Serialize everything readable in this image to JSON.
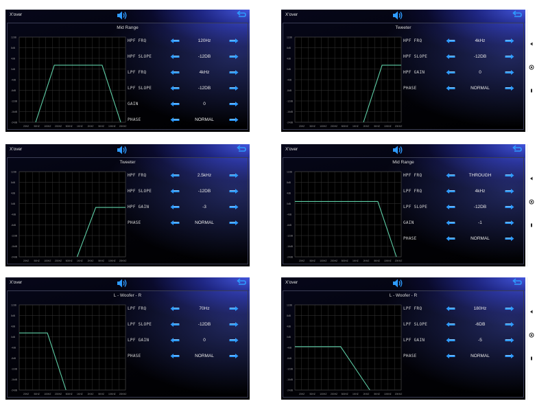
{
  "graph": {
    "y_ticks": [
      "12dB",
      "8dB",
      "4dB",
      "0dB",
      "-4dB",
      "-8dB",
      "-12dB",
      "-16dB",
      "-24dB"
    ],
    "x_ticks": [
      "20HZ",
      "50HZ",
      "100HZ",
      "200HZ",
      "500HZ",
      "1KHZ",
      "2KHZ",
      "5KHZ",
      "10KHZ",
      "20KHZ"
    ]
  },
  "icons": {
    "speaker": "speaker-volume-icon",
    "back": "return-arrow-icon",
    "left_button": "left-arrow-icon",
    "right_button": "right-arrow-icon"
  },
  "colors": {
    "curve": "#5fd0a8",
    "accent": "#2e9bff",
    "grid": "#3a3a3a"
  },
  "screens": [
    {
      "header": "X'over",
      "title": "Mid Range",
      "rows": [
        {
          "label": "HPF FRQ",
          "value": "120Hz"
        },
        {
          "label": "HPF SLOPE",
          "value": "-12DB"
        },
        {
          "label": "LPF FRQ",
          "value": "4kHz"
        },
        {
          "label": "LPF SLOPE",
          "value": "-12DB"
        },
        {
          "label": "GAIN",
          "value": "0"
        },
        {
          "label": "PHASE",
          "value": "NORMAL"
        }
      ],
      "curve": [
        [
          0.155,
          1.0
        ],
        [
          0.33,
          0.33
        ],
        [
          0.78,
          0.33
        ],
        [
          0.955,
          1.0
        ]
      ]
    },
    {
      "header": "X'over",
      "title": "Tweeter",
      "rows": [
        {
          "label": "HPF FRQ",
          "value": "4kHz"
        },
        {
          "label": "HPF SLOPE",
          "value": "-12DB"
        },
        {
          "label": "HPF GAIN",
          "value": "0"
        },
        {
          "label": "PHASE",
          "value": "NORMAL"
        }
      ],
      "curve": [
        [
          0.645,
          1.0
        ],
        [
          0.82,
          0.33
        ],
        [
          1.0,
          0.33
        ]
      ]
    },
    {
      "header": "X'over",
      "title": "Tweeter",
      "rows": [
        {
          "label": "HPF FRQ",
          "value": "2.5kHz"
        },
        {
          "label": "HPF SLOPE",
          "value": "-12DB"
        },
        {
          "label": "HPF GAIN",
          "value": "-3"
        },
        {
          "label": "PHASE",
          "value": "NORMAL"
        }
      ],
      "curve": [
        [
          0.545,
          1.0
        ],
        [
          0.72,
          0.42
        ],
        [
          1.0,
          0.42
        ]
      ]
    },
    {
      "header": "X'over",
      "title": "Mid Range",
      "rows": [
        {
          "label": "HPF FRQ",
          "value": "THROUGH"
        },
        {
          "label": "LPF FRQ",
          "value": "4kHz"
        },
        {
          "label": "LPF SLOPE",
          "value": "-12DB"
        },
        {
          "label": "GAIN",
          "value": "-1"
        },
        {
          "label": "PHASE",
          "value": "NORMAL"
        }
      ],
      "curve": [
        [
          0.0,
          0.35
        ],
        [
          0.78,
          0.35
        ],
        [
          0.955,
          1.0
        ]
      ]
    },
    {
      "header": "X'over",
      "title": "L - Woofer - R",
      "rows": [
        {
          "label": "LPF FRQ",
          "value": "70Hz"
        },
        {
          "label": "LPF SLOPE",
          "value": "-12DB"
        },
        {
          "label": "LPF GAIN",
          "value": "0"
        },
        {
          "label": "PHASE",
          "value": "NORMAL"
        }
      ],
      "curve": [
        [
          0.0,
          0.33
        ],
        [
          0.265,
          0.33
        ],
        [
          0.44,
          1.0
        ]
      ]
    },
    {
      "header": "X'over",
      "title": "L - Woofer - R",
      "rows": [
        {
          "label": "LPF FRQ",
          "value": "180Hz"
        },
        {
          "label": "LPF SLOPE",
          "value": "-6DB"
        },
        {
          "label": "LPF GAIN",
          "value": "-5"
        },
        {
          "label": "PHASE",
          "value": "NORMAL"
        }
      ],
      "curve": [
        [
          0.0,
          0.49
        ],
        [
          0.43,
          0.49
        ],
        [
          0.705,
          1.0
        ]
      ]
    }
  ]
}
